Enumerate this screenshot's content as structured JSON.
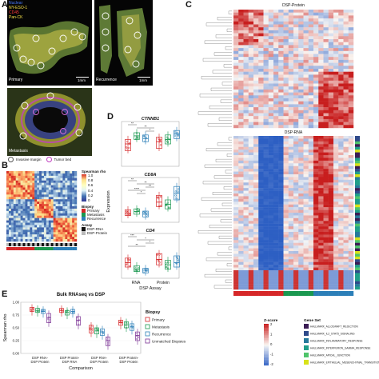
{
  "panel_labels": {
    "a": "A",
    "b": "B",
    "c": "C",
    "d": "D",
    "e": "E"
  },
  "panel_a": {
    "legend": [
      "Nuclear",
      "NY-ESO-1",
      "CD45",
      "Pan-CK"
    ],
    "legend_colors": [
      "#4a7bff",
      "#ffe84a",
      "#ff3b3b",
      "#ffe84a"
    ],
    "primary_label": "Primary",
    "recurrence_label": "Recurrence",
    "metastasis_label": "Metastasis",
    "scale_primary": "1mm",
    "scale_recurrence": "1mm",
    "roi_legend": {
      "invasive": "Invasive margin",
      "tumor": "Tumor bed"
    }
  },
  "panel_b": {
    "colorbar_title": "Spearman rho",
    "colorbar_ticks": [
      "1.0",
      "0.8",
      "0.6",
      "0.4",
      "0.2",
      "0"
    ],
    "biopsy_title": "Biopsy",
    "biopsy_items": [
      "Primary",
      "Metastasis",
      "Recurrence"
    ],
    "biopsy_colors": [
      "#d62728",
      "#1a9850",
      "#2c7fb8"
    ],
    "assay_title": "Assay",
    "assay_items": [
      "DSP-RNA",
      "DSP-Protein"
    ],
    "assay_colors": [
      "#111111",
      "#bbbbbb"
    ]
  },
  "panel_c": {
    "protein_title": "DSP-Protein",
    "rna_title": "DSP-RNA",
    "zscore_title": "Z-score",
    "zscore_ticks": [
      "2",
      "1",
      "0",
      "-1",
      "-2"
    ],
    "geneset_title": "Gene Set",
    "genesets": [
      {
        "name": "HALLMARK_ALLOGRAFT_REJECTION",
        "color": "#3b1c54"
      },
      {
        "name": "HALLMARK_IL2_STAT5_SIGNALING",
        "color": "#2f4a8a"
      },
      {
        "name": "HALLMARK_INFLAMMATORY_RESPONSE",
        "color": "#26799b"
      },
      {
        "name": "HALLMARK_INTERFERON_GAMMA_RESPONSE",
        "color": "#1f9e89"
      },
      {
        "name": "HALLMARK_APICAL_JUNCTION",
        "color": "#4fc46a"
      },
      {
        "name": "HALLMARK_EPITHELIAL_MESENCHYMAL_TRANSITION",
        "color": "#d8e219"
      }
    ]
  },
  "panel_d": {
    "ylabel": "Expression",
    "xlabel": "DSP Assay",
    "x_categories": [
      "RNA",
      "Protein"
    ],
    "subplots": [
      {
        "title": "CTNNB1",
        "sig": [
          "**",
          "**",
          "*"
        ]
      },
      {
        "title": "CD8A",
        "sig": [
          "**",
          "**",
          "**",
          "****",
          "*"
        ]
      },
      {
        "title": "CD4",
        "sig": [
          "***",
          "*",
          "*",
          "**"
        ]
      }
    ]
  },
  "panel_e": {
    "title": "Bulk RNAseq vs DSP",
    "ylabel": "Spearman rho",
    "xlabel": "Comparison",
    "yticks": [
      "1.00",
      "0.75",
      "0.50",
      "0.25",
      "0.00"
    ],
    "categories": [
      "DSP RNA-\nDSP Protein",
      "DSP Protein-\nDSP RNA",
      "DSP RNA-\nDSP Protein",
      "DSP Protein-\nDSP Protein"
    ],
    "legend_title": "Biopsy",
    "legend_items": [
      "Primary",
      "Metastasis",
      "Recurrence",
      "Unmatched Biopsies"
    ],
    "legend_colors": [
      "#d62728",
      "#1a9850",
      "#2c7fb8",
      "#7b3294"
    ]
  }
}
